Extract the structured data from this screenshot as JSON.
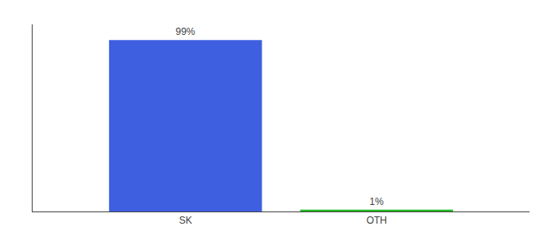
{
  "chart_data": {
    "type": "bar",
    "categories": [
      "SK",
      "OTH"
    ],
    "values": [
      99,
      1
    ],
    "value_labels": [
      "99%",
      "1%"
    ],
    "colors": [
      "#3d5fe0",
      "#22bb22"
    ],
    "ylim": [
      0,
      108
    ],
    "tick_labels": "x",
    "data_labels": true,
    "grid": false
  }
}
